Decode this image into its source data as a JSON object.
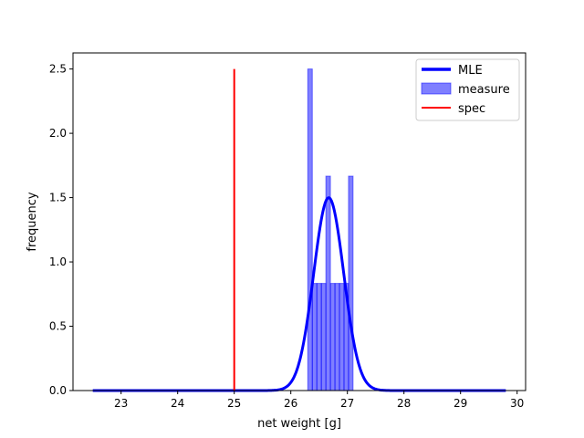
{
  "chart_data": {
    "type": "bar",
    "xlabel": "net weight [g]",
    "ylabel": "frequency",
    "xlim": [
      22.15,
      30.15
    ],
    "ylim": [
      0,
      2.625
    ],
    "x_ticks": [
      23,
      24,
      25,
      26,
      27,
      28,
      29,
      30
    ],
    "y_ticks": [
      0.0,
      0.5,
      1.0,
      1.5,
      2.0,
      2.5
    ],
    "x_tick_labels": [
      "23",
      "24",
      "25",
      "26",
      "27",
      "28",
      "29",
      "30"
    ],
    "y_tick_labels": [
      "0.0",
      "0.5",
      "1.0",
      "1.5",
      "2.0",
      "2.5"
    ],
    "grid": false,
    "legend_position": "top-right",
    "legend": [
      "MLE",
      "measure",
      "spec"
    ],
    "histogram": {
      "name": "measure",
      "color": "#0000ff",
      "bin_width": 0.08,
      "bins": [
        {
          "left": 26.3,
          "value": 2.5
        },
        {
          "left": 26.38,
          "value": 0.833
        },
        {
          "left": 26.46,
          "value": 0.833
        },
        {
          "left": 26.54,
          "value": 0.833
        },
        {
          "left": 26.62,
          "value": 1.667
        },
        {
          "left": 26.7,
          "value": 0.833
        },
        {
          "left": 26.78,
          "value": 0.833
        },
        {
          "left": 26.86,
          "value": 0.833
        },
        {
          "left": 26.94,
          "value": 0.833
        },
        {
          "left": 27.02,
          "value": 1.667
        }
      ]
    },
    "mle_curve": {
      "name": "MLE",
      "color": "#0000ff",
      "type": "normal_pdf",
      "mean": 26.67,
      "std": 0.266,
      "x_range": [
        22.5,
        29.8
      ]
    },
    "spec_line": {
      "name": "spec",
      "color": "#ff0000",
      "x": 25.0,
      "y_range": [
        0,
        2.5
      ]
    }
  }
}
